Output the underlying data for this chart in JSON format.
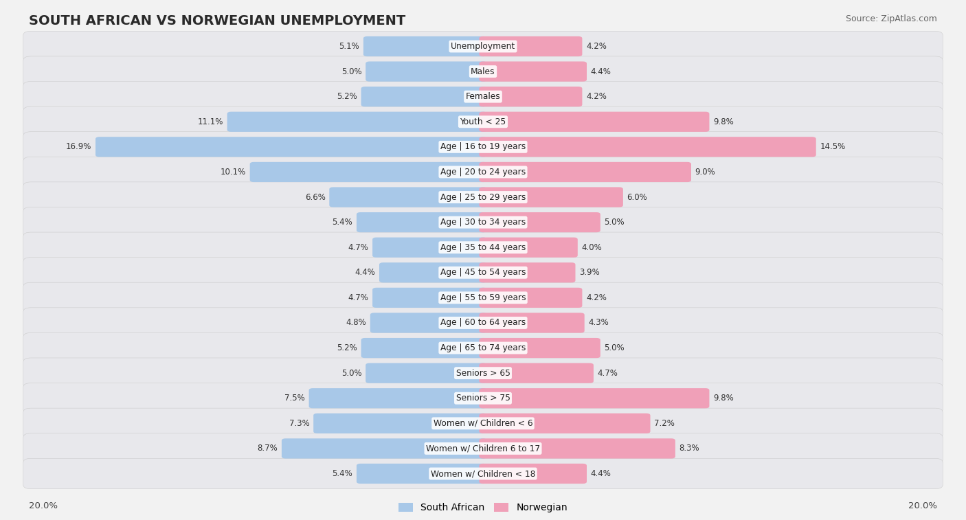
{
  "title": "SOUTH AFRICAN VS NORWEGIAN UNEMPLOYMENT",
  "source": "Source: ZipAtlas.com",
  "categories": [
    "Unemployment",
    "Males",
    "Females",
    "Youth < 25",
    "Age | 16 to 19 years",
    "Age | 20 to 24 years",
    "Age | 25 to 29 years",
    "Age | 30 to 34 years",
    "Age | 35 to 44 years",
    "Age | 45 to 54 years",
    "Age | 55 to 59 years",
    "Age | 60 to 64 years",
    "Age | 65 to 74 years",
    "Seniors > 65",
    "Seniors > 75",
    "Women w/ Children < 6",
    "Women w/ Children 6 to 17",
    "Women w/ Children < 18"
  ],
  "south_african": [
    5.1,
    5.0,
    5.2,
    11.1,
    16.9,
    10.1,
    6.6,
    5.4,
    4.7,
    4.4,
    4.7,
    4.8,
    5.2,
    5.0,
    7.5,
    7.3,
    8.7,
    5.4
  ],
  "norwegian": [
    4.2,
    4.4,
    4.2,
    9.8,
    14.5,
    9.0,
    6.0,
    5.0,
    4.0,
    3.9,
    4.2,
    4.3,
    5.0,
    4.7,
    9.8,
    7.2,
    8.3,
    4.4
  ],
  "max_val": 20.0,
  "blue_color": "#a8c8e8",
  "pink_color": "#f0a0b8",
  "background_color": "#f2f2f2",
  "row_bg_light": "#ebebeb",
  "row_bg_dark": "#e0e0e0",
  "row_border": "#d4d4d4"
}
